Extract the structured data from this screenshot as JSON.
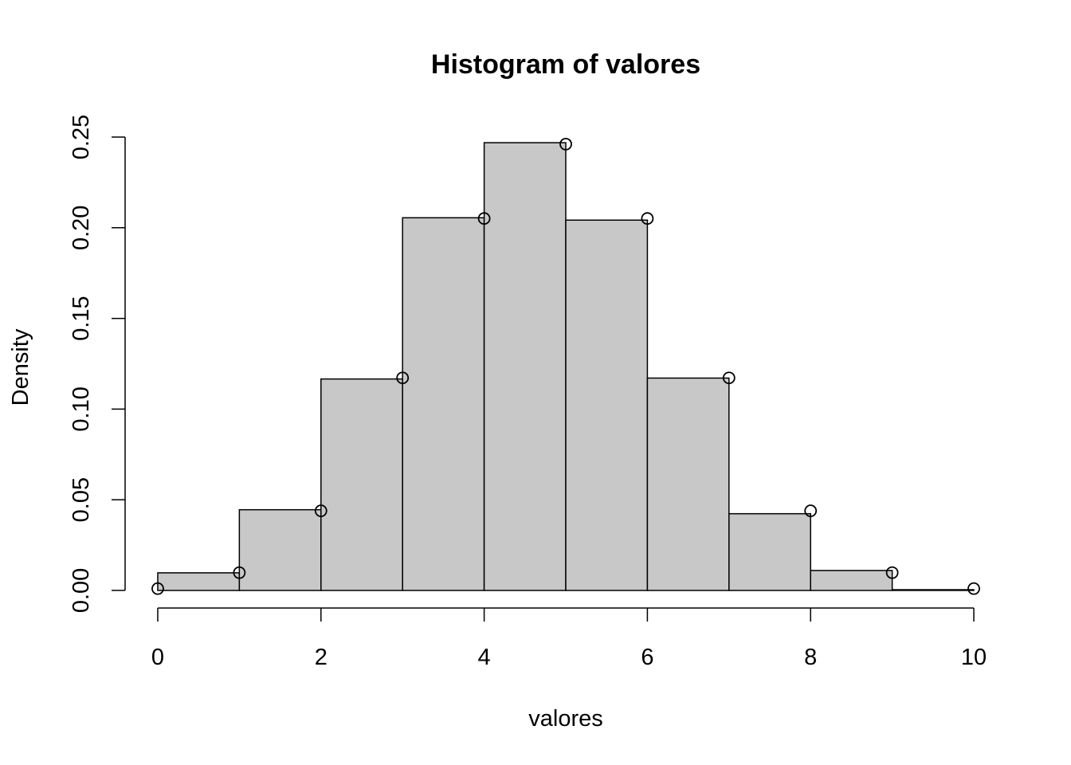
{
  "chart_data": {
    "type": "histogram",
    "title": "Histogram of valores",
    "x_label": "valores",
    "y_label": "Density",
    "bins": [
      0,
      1,
      2,
      3,
      4,
      5,
      6,
      7,
      8,
      9,
      10
    ],
    "values": [
      0.0097,
      0.0445,
      0.1166,
      0.2055,
      0.2469,
      0.2042,
      0.1171,
      0.0423,
      0.011,
      0.0004
    ],
    "color": "#c8c8c8",
    "points": {
      "x": [
        0,
        1,
        2,
        3,
        4,
        5,
        6,
        7,
        8,
        9,
        10
      ],
      "values": [
        0.001,
        0.0098,
        0.0439,
        0.1172,
        0.2051,
        0.2461,
        0.2051,
        0.1172,
        0.0439,
        0.0098,
        0.001
      ]
    },
    "xlim": [
      -0.4,
      10.4
    ],
    "ylim": [
      -0.0097,
      0.2566
    ],
    "xticks": [
      0,
      2,
      4,
      6,
      8,
      10
    ],
    "yticks": [
      {
        "value": 0,
        "label": "0.00"
      },
      {
        "value": 0.05,
        "label": "0.05"
      },
      {
        "value": 0.1,
        "label": "0.10"
      },
      {
        "value": 0.15,
        "label": "0.15"
      },
      {
        "value": 0.2,
        "label": "0.20"
      },
      {
        "value": 0.25,
        "label": "0.25"
      }
    ]
  }
}
